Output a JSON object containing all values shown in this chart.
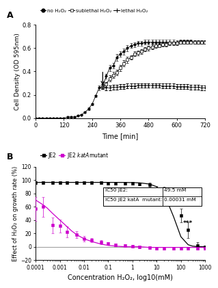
{
  "panel_A": {
    "title": "A",
    "xlabel": "Time [min]",
    "ylabel": "Cell Density (OD 595nm)",
    "ylim": [
      0,
      0.8
    ],
    "xlim": [
      0,
      720
    ],
    "xticks": [
      0,
      120,
      240,
      360,
      480,
      600,
      720
    ],
    "yticks": [
      0.0,
      0.2,
      0.4,
      0.6,
      0.8
    ],
    "no_h2o2_x": [
      0,
      15,
      30,
      45,
      60,
      75,
      90,
      105,
      120,
      135,
      150,
      165,
      180,
      195,
      210,
      225,
      240,
      255,
      270,
      285,
      300,
      315,
      330,
      345,
      360,
      375,
      390,
      405,
      420,
      435,
      450,
      465,
      480,
      495,
      510,
      525,
      540,
      555,
      570,
      585,
      600,
      615,
      630,
      645,
      660,
      675,
      690,
      705,
      720
    ],
    "no_h2o2_y": [
      0,
      0,
      0,
      0,
      0,
      0,
      0,
      0,
      0,
      0.01,
      0.01,
      0.01,
      0.02,
      0.03,
      0.05,
      0.08,
      0.12,
      0.19,
      0.26,
      0.27,
      0.36,
      0.43,
      0.45,
      0.52,
      0.55,
      0.57,
      0.6,
      0.62,
      0.63,
      0.64,
      0.64,
      0.65,
      0.65,
      0.65,
      0.65,
      0.65,
      0.65,
      0.65,
      0.65,
      0.65,
      0.65,
      0.66,
      0.66,
      0.66,
      0.66,
      0.65,
      0.65,
      0.65,
      0.65
    ],
    "no_h2o2_err": [
      0,
      0,
      0,
      0,
      0,
      0,
      0,
      0,
      0,
      0,
      0,
      0,
      0.005,
      0.005,
      0.005,
      0.01,
      0.01,
      0.01,
      0.02,
      0.015,
      0.02,
      0.025,
      0.025,
      0.03,
      0.025,
      0.025,
      0.025,
      0.02,
      0.02,
      0.02,
      0.02,
      0.02,
      0.02,
      0.02,
      0.02,
      0.02,
      0.02,
      0.02,
      0.02,
      0.02,
      0.015,
      0.015,
      0.015,
      0.015,
      0.015,
      0.015,
      0.015,
      0.015,
      0.015
    ],
    "sub_h2o2_x": [
      285,
      300,
      315,
      330,
      345,
      360,
      375,
      390,
      405,
      420,
      435,
      450,
      465,
      480,
      495,
      510,
      525,
      540,
      555,
      570,
      585,
      600,
      615,
      630,
      645,
      660,
      675,
      690,
      705,
      720
    ],
    "sub_h2o2_y": [
      0.27,
      0.29,
      0.34,
      0.37,
      0.39,
      0.43,
      0.47,
      0.5,
      0.52,
      0.55,
      0.56,
      0.57,
      0.59,
      0.6,
      0.61,
      0.62,
      0.62,
      0.63,
      0.63,
      0.64,
      0.64,
      0.64,
      0.65,
      0.65,
      0.65,
      0.65,
      0.65,
      0.65,
      0.65,
      0.65
    ],
    "sub_h2o2_err": [
      0.02,
      0.02,
      0.025,
      0.025,
      0.025,
      0.025,
      0.025,
      0.025,
      0.02,
      0.02,
      0.02,
      0.02,
      0.02,
      0.02,
      0.02,
      0.02,
      0.015,
      0.015,
      0.015,
      0.015,
      0.015,
      0.015,
      0.015,
      0.015,
      0.015,
      0.015,
      0.015,
      0.015,
      0.015,
      0.015
    ],
    "let_h2o2_x": [
      285,
      300,
      315,
      330,
      345,
      360,
      375,
      390,
      405,
      420,
      435,
      450,
      465,
      480,
      495,
      510,
      525,
      540,
      555,
      570,
      585,
      600,
      615,
      630,
      645,
      660,
      675,
      690,
      705,
      720
    ],
    "let_h2o2_y": [
      0.27,
      0.26,
      0.26,
      0.265,
      0.265,
      0.27,
      0.27,
      0.275,
      0.275,
      0.275,
      0.28,
      0.28,
      0.28,
      0.28,
      0.28,
      0.28,
      0.28,
      0.275,
      0.275,
      0.275,
      0.275,
      0.27,
      0.27,
      0.27,
      0.27,
      0.265,
      0.265,
      0.265,
      0.26,
      0.26
    ],
    "let_h2o2_err": [
      0.02,
      0.02,
      0.02,
      0.02,
      0.02,
      0.02,
      0.02,
      0.02,
      0.02,
      0.02,
      0.02,
      0.02,
      0.02,
      0.02,
      0.02,
      0.02,
      0.02,
      0.02,
      0.02,
      0.02,
      0.02,
      0.02,
      0.02,
      0.02,
      0.02,
      0.02,
      0.02,
      0.02,
      0.02,
      0.02
    ],
    "legend_labels": [
      "no H₂O₂",
      "sublethal H₂O₂",
      "lethal H₂O₂"
    ],
    "color": "black"
  },
  "panel_B": {
    "title": "B",
    "xlabel": "Concentration H₂O₂, log10(mM)",
    "ylabel": "Effect of H₂O₂ on growth rate (%)",
    "ylim": [
      -20,
      120
    ],
    "xlim_log": [
      0.0001,
      1000
    ],
    "yticks": [
      -20,
      0,
      20,
      40,
      60,
      80,
      100,
      120
    ],
    "xtick_vals": [
      0.0001,
      0.001,
      0.01,
      0.1,
      1,
      10,
      100,
      1000
    ],
    "xtick_labels": [
      "0.0001",
      "0.001",
      "0.01",
      "0.1",
      "1",
      "10",
      "100",
      "1000"
    ],
    "JE2_x": [
      0.0001,
      0.0002,
      0.0005,
      0.001,
      0.002,
      0.005,
      0.01,
      0.02,
      0.05,
      0.1,
      0.2,
      0.5,
      1,
      2,
      5,
      10,
      20,
      50,
      100,
      200,
      500,
      1000
    ],
    "JE2_y": [
      96,
      96,
      96,
      96,
      96,
      96,
      96,
      96,
      96,
      95,
      95,
      95,
      95,
      94,
      93,
      87,
      85,
      73,
      47,
      25,
      2,
      0
    ],
    "JE2_err": [
      2,
      2,
      2,
      2,
      2,
      2,
      2,
      2,
      2,
      2,
      2,
      2,
      2,
      2,
      3,
      4,
      5,
      8,
      10,
      12,
      5,
      2
    ],
    "JE2_fit_x": [
      0.0001,
      0.0002,
      0.0003,
      0.0005,
      0.001,
      0.002,
      0.003,
      0.005,
      0.01,
      0.02,
      0.05,
      0.1,
      0.2,
      0.5,
      1,
      2,
      5,
      10,
      20,
      50,
      100,
      200,
      300,
      500,
      1000
    ],
    "JE2_fit_y": [
      96.5,
      96.5,
      96.5,
      96.5,
      96.5,
      96.5,
      96.5,
      96.5,
      96.5,
      96.5,
      96.5,
      96.5,
      96.5,
      96.4,
      96.2,
      95.8,
      94,
      90,
      80,
      45,
      15,
      3,
      1,
      0.2,
      0
    ],
    "katA_x": [
      0.0001,
      0.0002,
      0.0005,
      0.001,
      0.002,
      0.005,
      0.01,
      0.02,
      0.05,
      0.1,
      0.2,
      0.5,
      1,
      2,
      5,
      10,
      20,
      50,
      100,
      200,
      500,
      1000
    ],
    "katA_y": [
      57,
      60,
      32,
      31,
      22,
      18,
      12,
      10,
      7,
      5,
      3,
      2,
      1,
      0,
      -1,
      -2,
      -2,
      -2,
      -2,
      -2,
      -2,
      -2
    ],
    "katA_err": [
      18,
      15,
      12,
      10,
      8,
      5,
      4,
      3,
      3,
      2,
      2,
      2,
      2,
      2,
      2,
      2,
      2,
      2,
      2,
      2,
      2,
      2
    ],
    "katA_fit_x": [
      0.0001,
      0.0002,
      0.0003,
      0.0005,
      0.001,
      0.002,
      0.003,
      0.005,
      0.01,
      0.02,
      0.05,
      0.1,
      0.2,
      0.5,
      1,
      2,
      5,
      10,
      20,
      50,
      100,
      200,
      500,
      1000
    ],
    "katA_fit_y": [
      70,
      63,
      58,
      50,
      40,
      30,
      24,
      18,
      12,
      8,
      4,
      2,
      1,
      0,
      0,
      0,
      -1,
      -1,
      -1,
      -1,
      -1,
      -1,
      -1,
      -1
    ],
    "JE2_color": "black",
    "katA_color": "#CC00CC",
    "zero_line_color": "#888888",
    "star_text": "***",
    "star_x": 200,
    "star_y": 35,
    "ic50_je2": "49.5 mM",
    "ic50_katA": "0.00031 mM"
  }
}
